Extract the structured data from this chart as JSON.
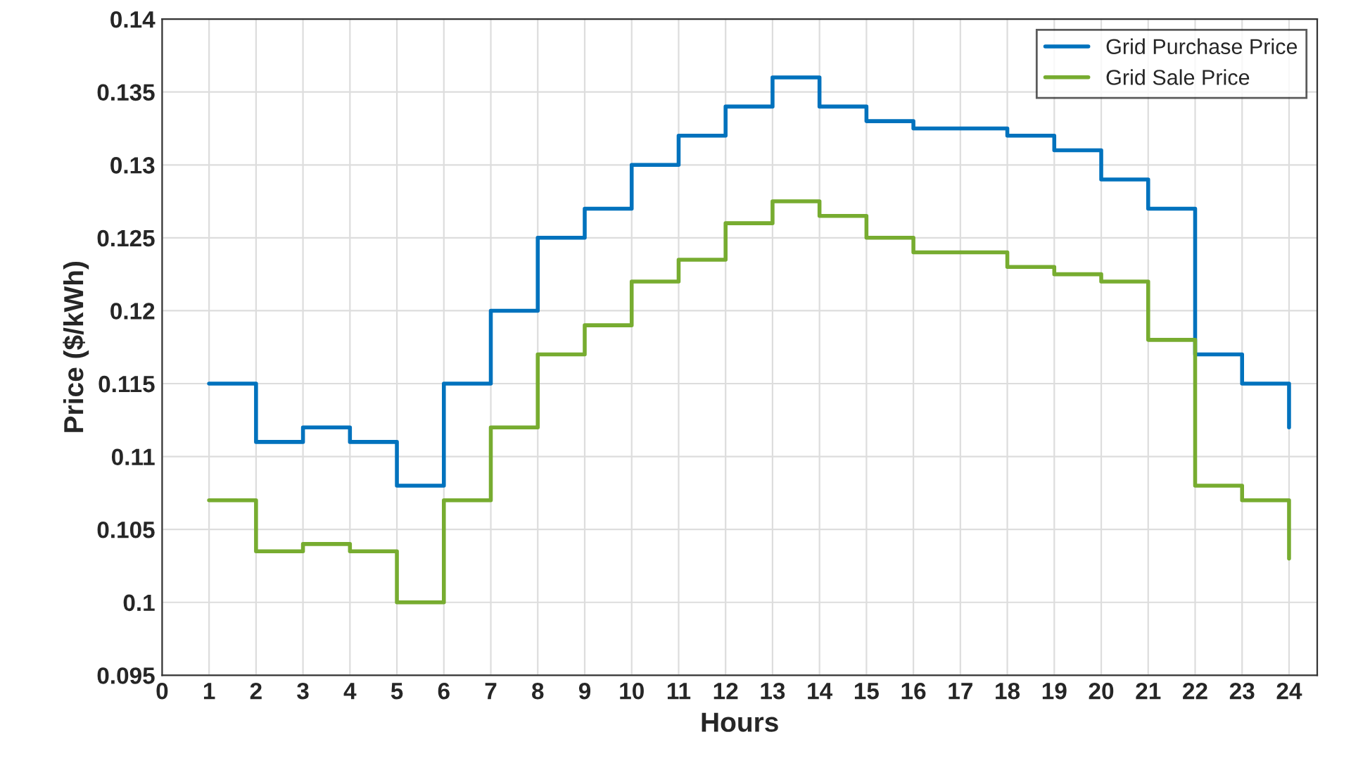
{
  "chart_data": {
    "type": "step",
    "xlabel": "Hours",
    "ylabel": "Price ($/kWh)",
    "x": [
      1,
      2,
      3,
      4,
      5,
      6,
      7,
      8,
      9,
      10,
      11,
      12,
      13,
      14,
      15,
      16,
      17,
      18,
      19,
      20,
      21,
      22,
      23,
      24
    ],
    "series": [
      {
        "name": "Grid Purchase Price",
        "color": "#0072bd",
        "values": [
          0.115,
          0.111,
          0.112,
          0.111,
          0.108,
          0.115,
          0.12,
          0.125,
          0.127,
          0.13,
          0.132,
          0.134,
          0.136,
          0.134,
          0.133,
          0.1325,
          0.1325,
          0.132,
          0.131,
          0.129,
          0.127,
          0.117,
          0.115,
          0.112
        ]
      },
      {
        "name": "Grid Sale Price",
        "color": "#77ac30",
        "values": [
          0.107,
          0.1035,
          0.104,
          0.1035,
          0.1,
          0.107,
          0.112,
          0.117,
          0.119,
          0.122,
          0.1235,
          0.126,
          0.1275,
          0.1265,
          0.125,
          0.124,
          0.124,
          0.123,
          0.1225,
          0.122,
          0.118,
          0.108,
          0.107,
          0.103
        ]
      }
    ],
    "xlim": [
      0,
      24.6
    ],
    "xticks": [
      0,
      1,
      2,
      3,
      4,
      5,
      6,
      7,
      8,
      9,
      10,
      11,
      12,
      13,
      14,
      15,
      16,
      17,
      18,
      19,
      20,
      21,
      22,
      23,
      24
    ],
    "ylim": [
      0.095,
      0.14
    ],
    "yticks": [
      0.095,
      0.1,
      0.105,
      0.11,
      0.115,
      0.12,
      0.125,
      0.13,
      0.135,
      0.14
    ],
    "grid": true,
    "legend": "top right",
    "line_style": "solid"
  }
}
